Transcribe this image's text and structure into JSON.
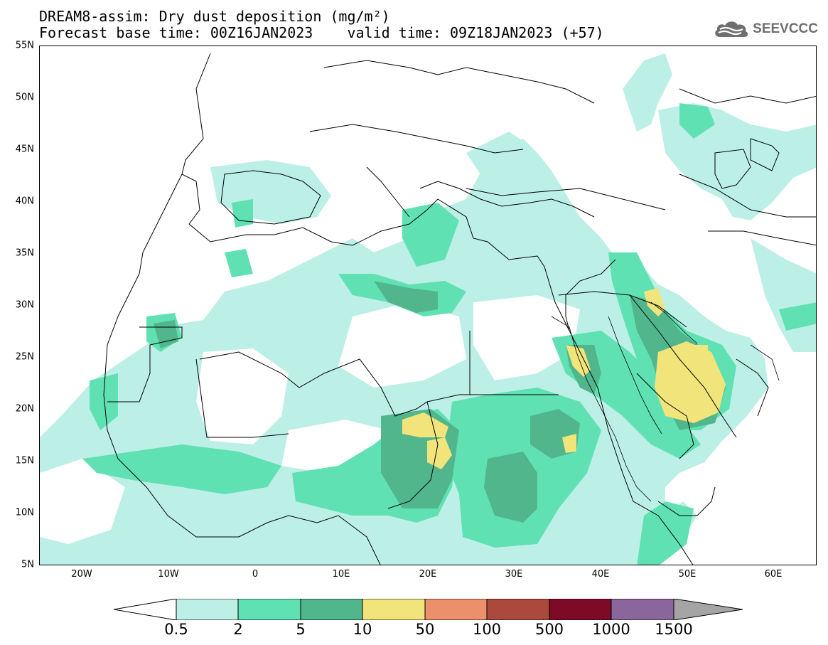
{
  "header": {
    "title_line1": "DREAM8-assim: Dry dust deposition (mg/m²)",
    "title_line2": "Forecast base time: 00Z16JAN2023    valid time: 09Z18JAN2023 (+57)"
  },
  "logo": {
    "text": "SEEVCCC",
    "icon": "cloud-icon"
  },
  "map": {
    "projection": "lat-lon",
    "lon_range": [
      -25,
      65
    ],
    "lat_range": [
      5,
      55
    ],
    "lat_ticks": [
      "55N",
      "50N",
      "45N",
      "40N",
      "35N",
      "30N",
      "25N",
      "20N",
      "15N",
      "10N",
      "5N"
    ],
    "lon_ticks": [
      "20W",
      "10W",
      "0",
      "10E",
      "20E",
      "30E",
      "40E",
      "50E",
      "60E"
    ],
    "colors": {
      "c0_5": "#bcefe6",
      "c2": "#5fe1b3",
      "c5": "#52b68d",
      "c10": "#f1e47b"
    }
  },
  "colorbar": {
    "labels": [
      "0.5",
      "2",
      "5",
      "10",
      "50",
      "100",
      "500",
      "1000",
      "1500"
    ],
    "colors": [
      "#bcefe6",
      "#5fe1b3",
      "#52b68d",
      "#f1e47b",
      "#eb906b",
      "#ab4a3c",
      "#7d0a26",
      "#8a669c"
    ],
    "under_color": "#ffffff",
    "over_color": "#a5a5a5"
  }
}
